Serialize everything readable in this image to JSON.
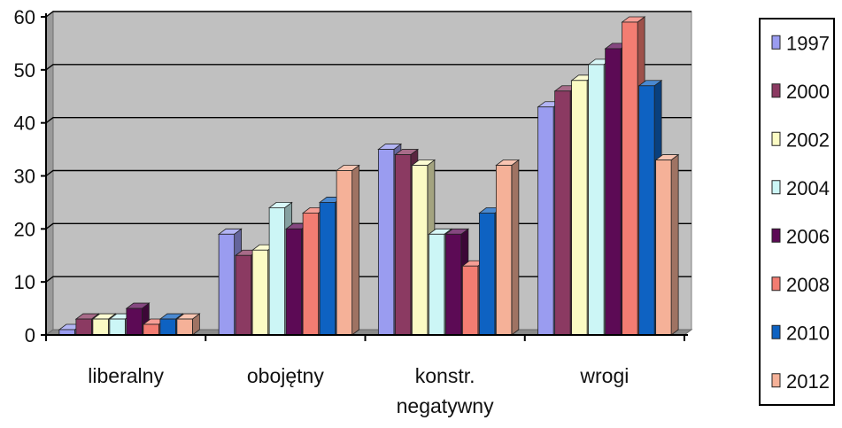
{
  "chart_data": {
    "type": "bar",
    "title": "",
    "xlabel": "",
    "ylabel": "",
    "ylim": [
      0,
      60
    ],
    "yticks": [
      0,
      10,
      20,
      30,
      40,
      50,
      60
    ],
    "grid": true,
    "legend_position": "right",
    "categories": [
      [
        "liberalny"
      ],
      [
        "obojętny"
      ],
      [
        "konstr.",
        "negatywny"
      ],
      [
        "wrogi"
      ]
    ],
    "series": [
      {
        "name": "1997",
        "color": "#9a9cf0",
        "values": [
          1,
          19,
          35,
          43
        ]
      },
      {
        "name": "2000",
        "color": "#8b3a62",
        "values": [
          3,
          15,
          34,
          46
        ]
      },
      {
        "name": "2002",
        "color": "#fbfbc4",
        "values": [
          3,
          16,
          32,
          48
        ]
      },
      {
        "name": "2004",
        "color": "#ccf6f6",
        "values": [
          3,
          24,
          19,
          51
        ]
      },
      {
        "name": "2006",
        "color": "#5c0a55",
        "values": [
          5,
          20,
          19,
          54
        ]
      },
      {
        "name": "2008",
        "color": "#f37d72",
        "values": [
          2,
          23,
          13,
          59
        ]
      },
      {
        "name": "2010",
        "color": "#0e62c2",
        "values": [
          3,
          25,
          23,
          47
        ]
      },
      {
        "name": "2012",
        "color": "#f5b198",
        "values": [
          3,
          31,
          32,
          33
        ]
      }
    ]
  }
}
